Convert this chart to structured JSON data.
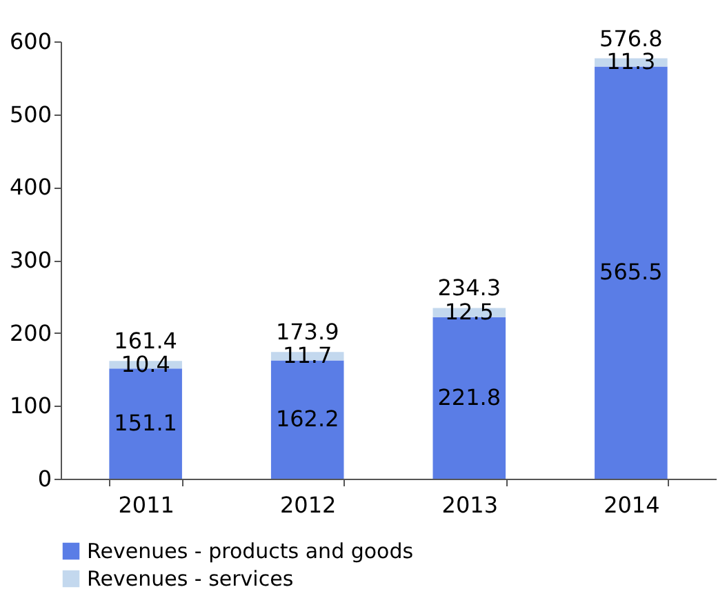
{
  "chart_data": {
    "type": "bar",
    "stacked": true,
    "categories": [
      "2011",
      "2012",
      "2013",
      "2014"
    ],
    "series": [
      {
        "name": "Revenues - products and goods",
        "color": "#5a7de6",
        "values": [
          151.1,
          162.2,
          221.8,
          565.5
        ]
      },
      {
        "name": "Revenues - services",
        "color": "#c3d8ee",
        "values": [
          10.4,
          11.7,
          12.5,
          11.3
        ]
      }
    ],
    "totals": [
      "161.4",
      "173.9",
      "234.3",
      "576.8"
    ],
    "data_labels": true,
    "ylim": [
      0,
      600
    ],
    "yticks": [
      0,
      100,
      200,
      300,
      400,
      500,
      600
    ],
    "grid": false,
    "legend": "bottom"
  }
}
